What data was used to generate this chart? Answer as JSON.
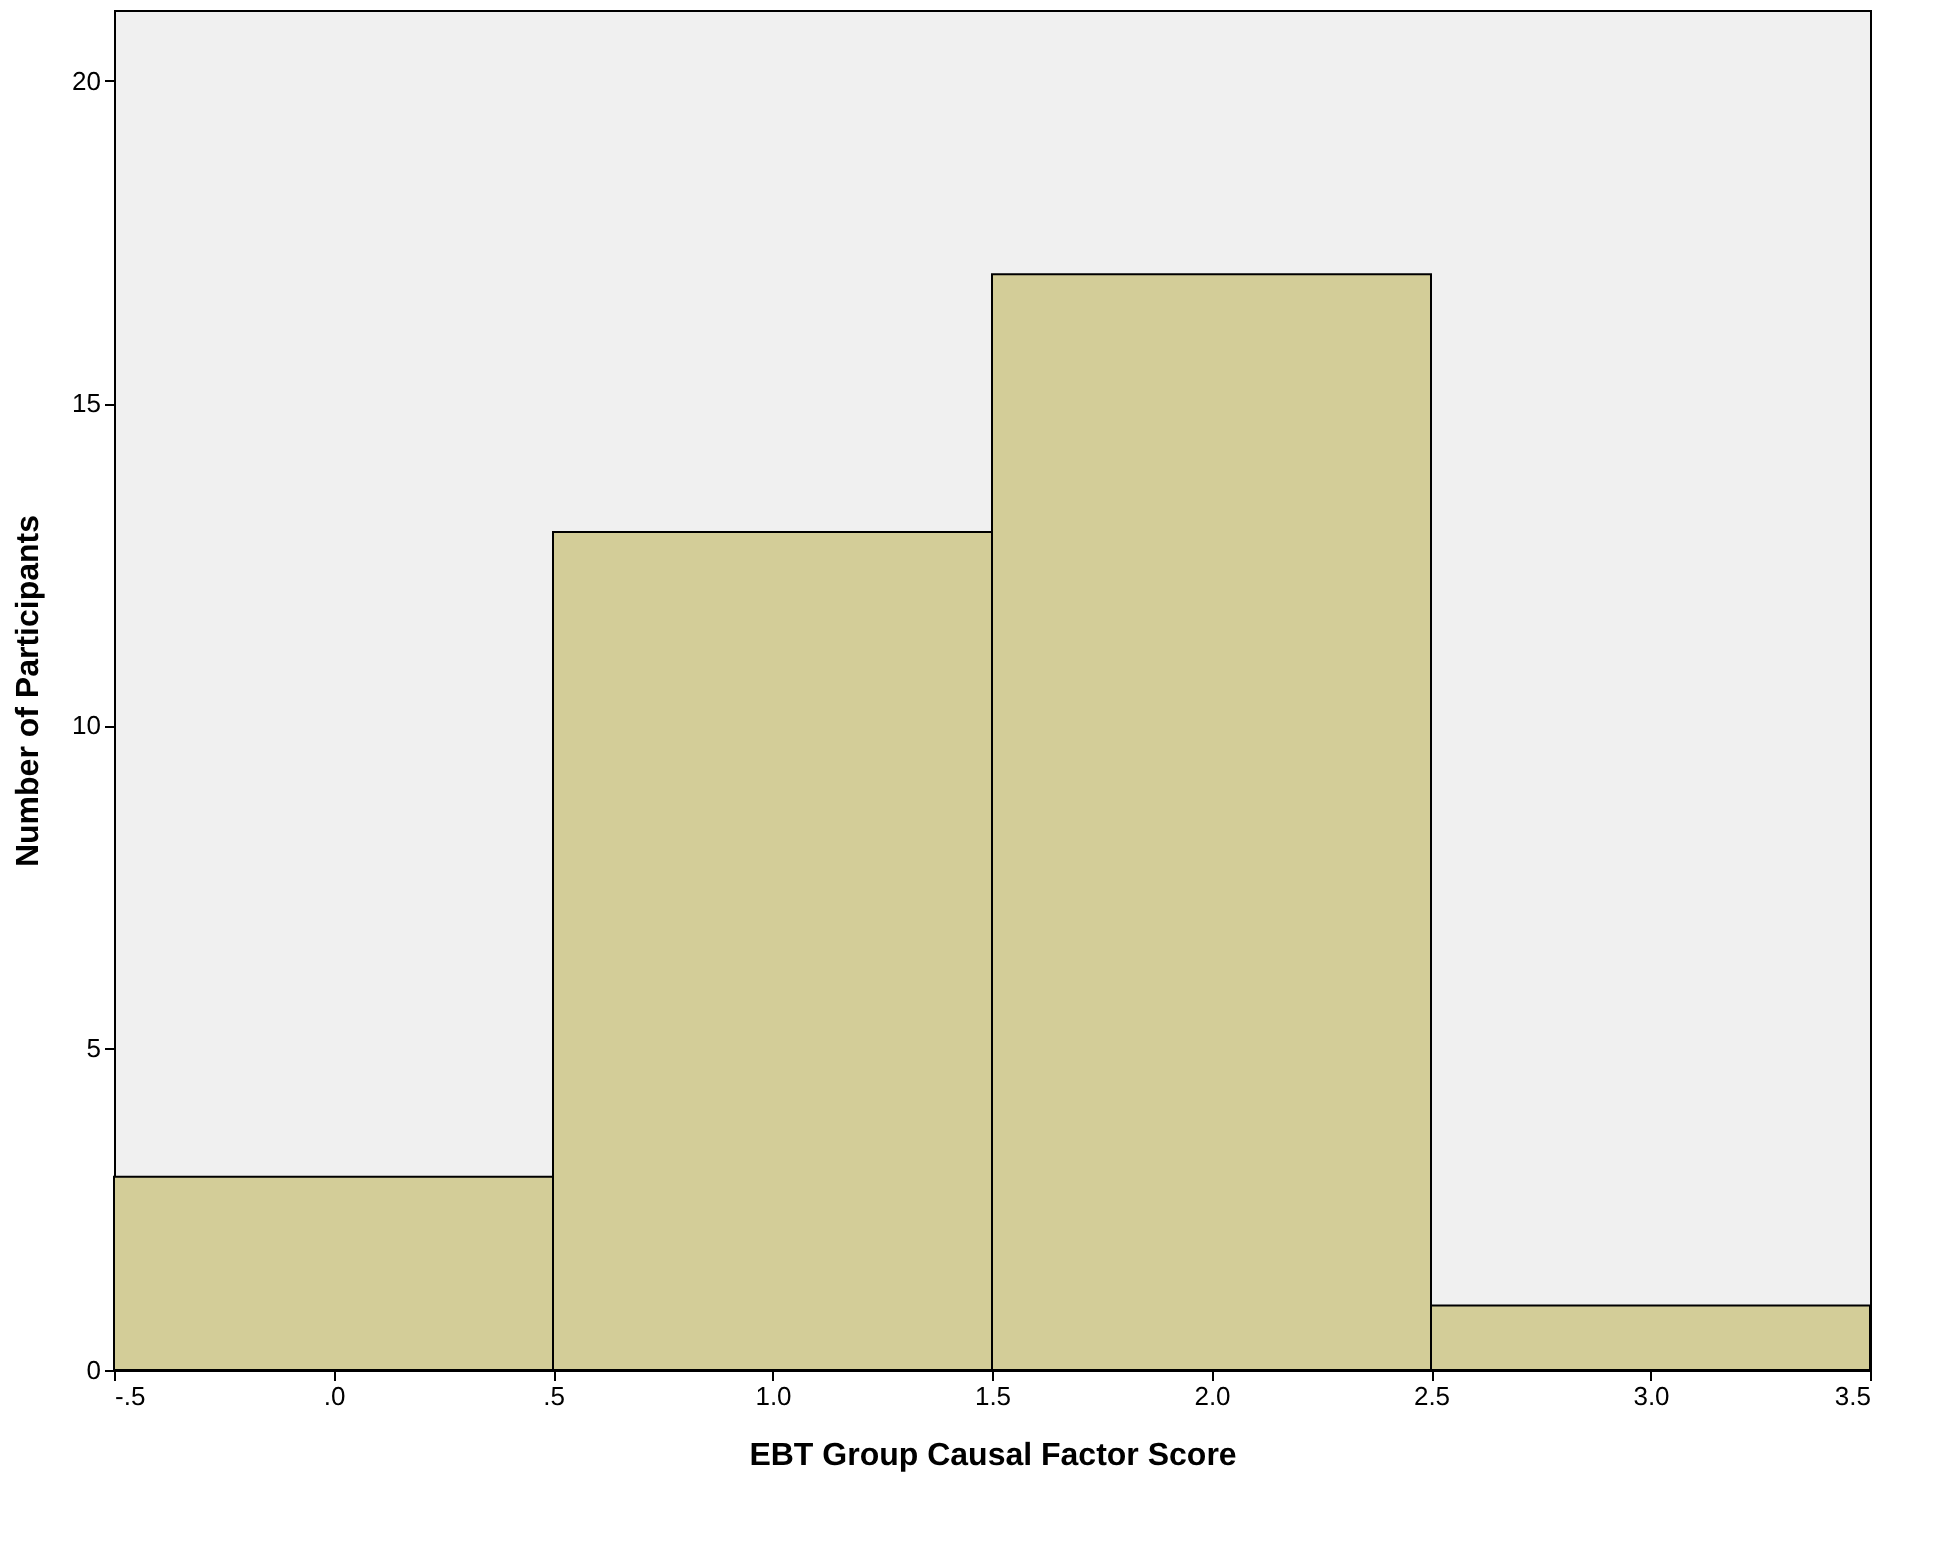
{
  "chart_data": {
    "type": "histogram",
    "xlabel": "EBT Group Causal Factor Score",
    "ylabel": "Number of Participants",
    "bins": [
      -0.5,
      0.5,
      1.5,
      2.5,
      3.5
    ],
    "values": [
      3,
      13,
      17,
      1
    ],
    "color": "#d3cd98",
    "xlim": [
      -0.5,
      3.5
    ],
    "xticks": [
      {
        "value": -0.5,
        "label": "-.5"
      },
      {
        "value": 0,
        "label": ".0"
      },
      {
        "value": 0.5,
        "label": ".5"
      },
      {
        "value": 1,
        "label": "1.0"
      },
      {
        "value": 1.5,
        "label": "1.5"
      },
      {
        "value": 2,
        "label": "2.0"
      },
      {
        "value": 2.5,
        "label": "2.5"
      },
      {
        "value": 3,
        "label": "3.0"
      },
      {
        "value": 3.5,
        "label": "3.5"
      }
    ],
    "ylim": [
      0,
      21.1
    ],
    "yticks": [
      0,
      5,
      10,
      15,
      20
    ],
    "grid": false
  }
}
